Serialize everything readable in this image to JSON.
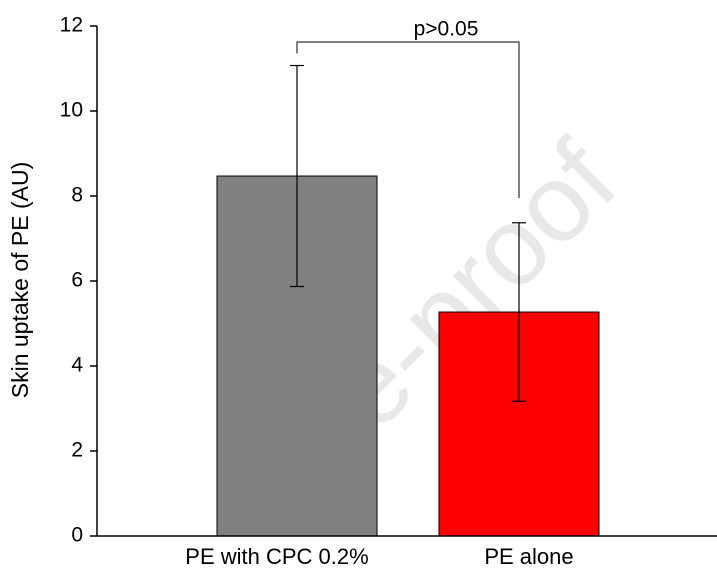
{
  "chart_data": {
    "type": "bar",
    "y_label": "Skin uptake of PE (AU)",
    "categories": [
      "PE with CPC 0.2%",
      "PE alone"
    ],
    "series": [
      {
        "name": null,
        "values": [
          8.47,
          5.27
        ],
        "errors": [
          2.6,
          2.1
        ],
        "colors": [
          "#808080",
          "#ff0000"
        ]
      }
    ],
    "ylim": [
      0,
      12
    ],
    "yticks": [
      0,
      2,
      4,
      6,
      8,
      10,
      12
    ],
    "annotation": "p>0.05",
    "watermark": "Pre-proof"
  }
}
